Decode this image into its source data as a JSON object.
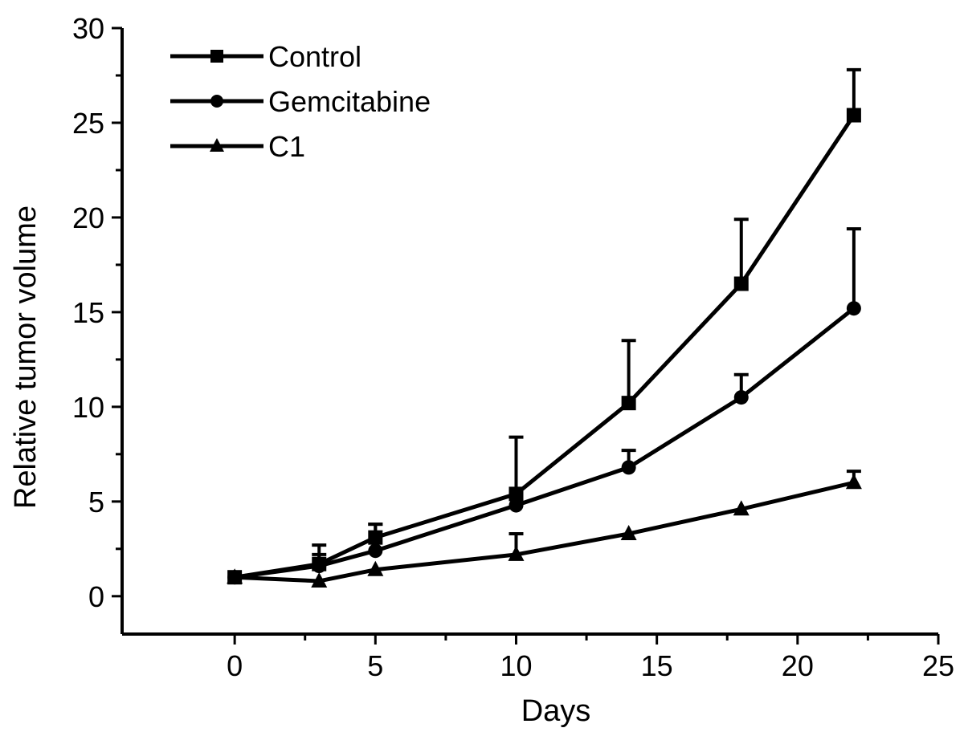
{
  "chart_data": {
    "type": "line",
    "xlabel": "Days",
    "ylabel": "Relative tumor volume",
    "xlim": [
      -4,
      25
    ],
    "ylim": [
      -2,
      30
    ],
    "xticks": [
      0,
      5,
      10,
      15,
      20,
      25
    ],
    "yticks": [
      0,
      5,
      10,
      15,
      20,
      25,
      30
    ],
    "grid": false,
    "legend_position": "top-left",
    "series": [
      {
        "name": "Control",
        "marker": "square",
        "x": [
          0,
          3,
          5,
          10,
          14,
          18,
          22
        ],
        "y": [
          1.0,
          1.7,
          3.1,
          5.4,
          10.2,
          16.5,
          25.4
        ],
        "err": [
          0.0,
          1.0,
          0.7,
          3.0,
          3.3,
          3.4,
          2.4
        ]
      },
      {
        "name": "Gemcitabine",
        "marker": "circle",
        "x": [
          0,
          3,
          5,
          10,
          14,
          18,
          22
        ],
        "y": [
          1.0,
          1.6,
          2.4,
          4.8,
          6.8,
          10.5,
          15.2
        ],
        "err": [
          0.0,
          0.6,
          1.4,
          0.0,
          0.9,
          1.2,
          4.2
        ]
      },
      {
        "name": "C1",
        "marker": "triangle",
        "x": [
          0,
          3,
          5,
          10,
          14,
          18,
          22
        ],
        "y": [
          1.0,
          0.8,
          1.4,
          2.2,
          3.3,
          4.6,
          6.0
        ],
        "err": [
          0.0,
          0.0,
          0.0,
          1.1,
          0.0,
          0.0,
          0.6
        ]
      }
    ]
  }
}
